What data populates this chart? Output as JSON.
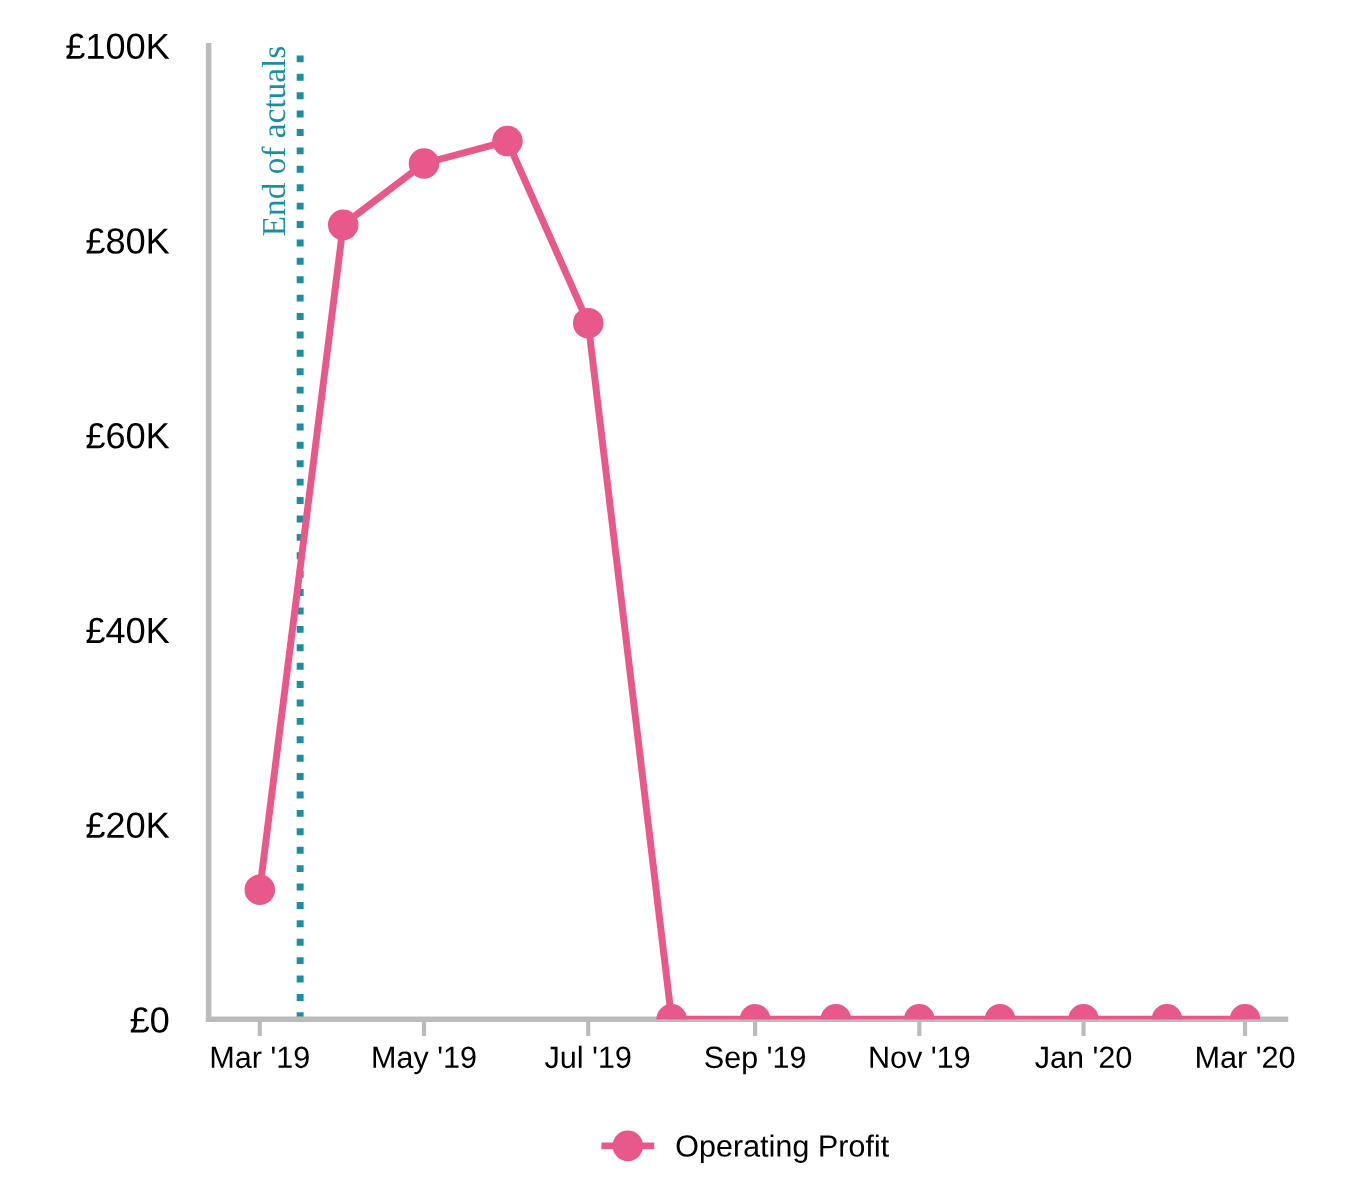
{
  "chart_data": {
    "type": "line",
    "x": [
      "2019-03-01",
      "2019-04-01",
      "2019-05-01",
      "2019-06-01",
      "2019-07-01",
      "2019-08-01",
      "2019-09-01",
      "2019-10-01",
      "2019-11-01",
      "2019-12-01",
      "2020-01-01",
      "2020-02-01",
      "2020-03-01"
    ],
    "series": [
      {
        "name": "Operating Profit",
        "color": "#e8588a",
        "values": [
          13300,
          81600,
          87900,
          90200,
          71500,
          0,
          0,
          0,
          0,
          0,
          0,
          0,
          0
        ]
      }
    ],
    "xlim": [
      "2019-02-10",
      "2020-03-16"
    ],
    "xticks": [
      {
        "value": "2019-03-01",
        "label": "Mar '19"
      },
      {
        "value": "2019-05-01",
        "label": "May '19"
      },
      {
        "value": "2019-07-01",
        "label": "Jul '19"
      },
      {
        "value": "2019-09-01",
        "label": "Sep '19"
      },
      {
        "value": "2019-11-01",
        "label": "Nov '19"
      },
      {
        "value": "2020-01-01",
        "label": "Jan '20"
      },
      {
        "value": "2020-03-01",
        "label": "Mar '20"
      }
    ],
    "ylim": [
      0,
      100000
    ],
    "yticks": [
      {
        "value": 0,
        "label": "£0"
      },
      {
        "value": 20000,
        "label": "£20K"
      },
      {
        "value": 40000,
        "label": "£40K"
      },
      {
        "value": 60000,
        "label": "£60K"
      },
      {
        "value": 80000,
        "label": "£80K"
      },
      {
        "value": 100000,
        "label": "£100K"
      }
    ],
    "ref_lines": [
      {
        "axis": "x",
        "value": "2019-03-16",
        "label": "End of actuals",
        "color": "#1a8fa0",
        "line_style": "dotted"
      }
    ],
    "marker": "circle",
    "line_style": "solid",
    "grid": false,
    "legend": "bottom"
  }
}
